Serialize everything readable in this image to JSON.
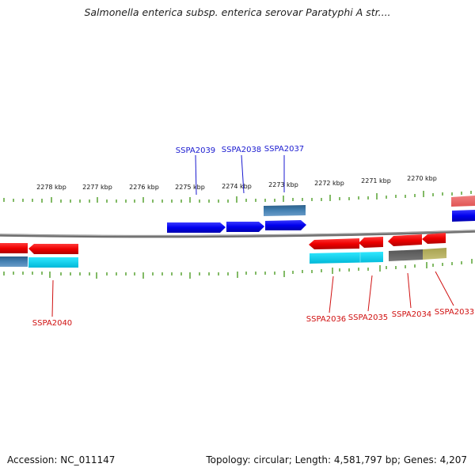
{
  "title": "Salmonella enterica subsp. enterica serovar Paratyphi A str....",
  "footer": {
    "accession": "Accession: NC_011147",
    "summary": "Topology: circular; Length: 4,581,797 bp; Genes: 4,207"
  },
  "ruler": {
    "labels": [
      "2278 kbp",
      "2277 kbp",
      "2276 kbp",
      "2275 kbp",
      "2274 kbp",
      "2273 kbp",
      "2272 kbp",
      "2271 kbp",
      "2270 kbp"
    ]
  },
  "genes_top": [
    "SSPA2039",
    "SSPA2038",
    "SSPA2037"
  ],
  "genes_bottom": [
    "SSPA2040",
    "SSPA2036",
    "SSPA2035",
    "SSPA2034",
    "SSPA2033"
  ],
  "colors": {
    "backbone": "#808080",
    "tick": "#2e8b00",
    "forward_gene": "#0000ee",
    "reverse_gene": "#ee0000",
    "cyan_feature": "#00d8f0",
    "steel_feature": "#4682b4",
    "gray_feature": "#666666",
    "khaki_feature": "#b5b060",
    "label_top": "#1a1ad0",
    "label_bottom": "#d01010"
  }
}
